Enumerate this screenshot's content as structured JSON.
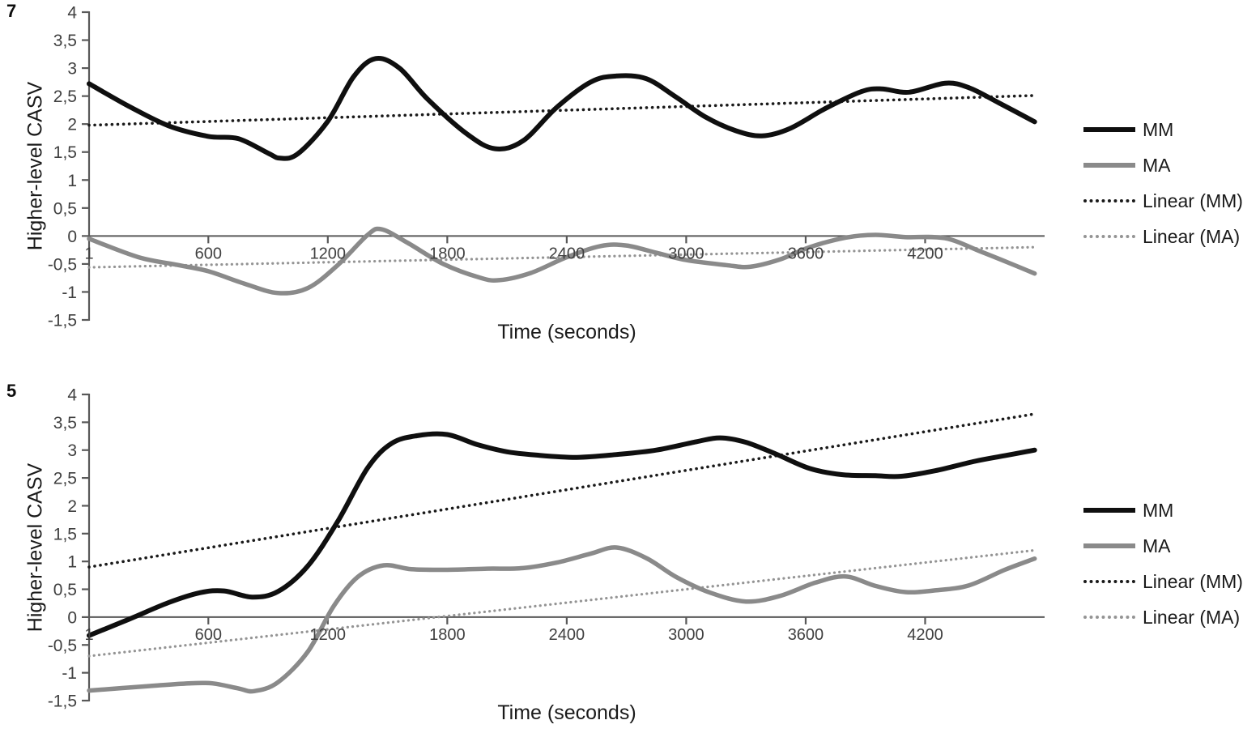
{
  "figure": {
    "background": "#ffffff"
  },
  "colors": {
    "mm": "#0f0f0f",
    "ma": "#8a8a8a",
    "linear_mm": "#1a1a1a",
    "linear_ma": "#949494",
    "axis": "#595959",
    "tick_text": "#404040",
    "title_text": "#1a1a1a"
  },
  "chart_data": [
    {
      "type": "line",
      "panel_label": "7",
      "xlabel": "Time (seconds)",
      "ylabel": "Higher-level CASV",
      "x_range": [
        1,
        4800
      ],
      "y_range": [
        -1.5,
        4
      ],
      "grid": false,
      "legend_position": "right",
      "x_ticks": [
        {
          "v": 1,
          "label": "1"
        },
        {
          "v": 600,
          "label": "600"
        },
        {
          "v": 1200,
          "label": "1200"
        },
        {
          "v": 1800,
          "label": "1800"
        },
        {
          "v": 2400,
          "label": "2400"
        },
        {
          "v": 3000,
          "label": "3000"
        },
        {
          "v": 3600,
          "label": "3600"
        },
        {
          "v": 4200,
          "label": "4200"
        }
      ],
      "y_ticks": [
        {
          "v": 4,
          "label": "4"
        },
        {
          "v": 3.5,
          "label": "3,5"
        },
        {
          "v": 3,
          "label": "3"
        },
        {
          "v": 2.5,
          "label": "2,5"
        },
        {
          "v": 2,
          "label": "2"
        },
        {
          "v": 1.5,
          "label": "1,5"
        },
        {
          "v": 1,
          "label": "1"
        },
        {
          "v": 0.5,
          "label": "0,5"
        },
        {
          "v": 0,
          "label": "0"
        },
        {
          "v": -0.5,
          "label": "-0,5"
        },
        {
          "v": -1,
          "label": "-1"
        },
        {
          "v": -1.5,
          "label": "-1,5"
        }
      ],
      "series": [
        {
          "name": "Linear (MM)",
          "style": "dotted",
          "color": "#1a1a1a",
          "stroke_width": 3.6,
          "points": [
            [
              1,
              1.98
            ],
            [
              4750,
              2.51
            ]
          ]
        },
        {
          "name": "Linear (MA)",
          "style": "dotted",
          "color": "#949494",
          "stroke_width": 3.2,
          "points": [
            [
              1,
              -0.56
            ],
            [
              4750,
              -0.2
            ]
          ]
        },
        {
          "name": "MA",
          "style": "solid",
          "color": "#8a8a8a",
          "stroke_width": 5.5,
          "points": [
            [
              1,
              -0.05
            ],
            [
              250,
              -0.38
            ],
            [
              450,
              -0.52
            ],
            [
              600,
              -0.63
            ],
            [
              780,
              -0.85
            ],
            [
              950,
              -1.02
            ],
            [
              1100,
              -0.93
            ],
            [
              1250,
              -0.52
            ],
            [
              1400,
              0.02
            ],
            [
              1470,
              0.12
            ],
            [
              1600,
              -0.12
            ],
            [
              1780,
              -0.5
            ],
            [
              1960,
              -0.74
            ],
            [
              2060,
              -0.79
            ],
            [
              2220,
              -0.66
            ],
            [
              2400,
              -0.38
            ],
            [
              2570,
              -0.18
            ],
            [
              2700,
              -0.17
            ],
            [
              2850,
              -0.3
            ],
            [
              3000,
              -0.43
            ],
            [
              3200,
              -0.52
            ],
            [
              3320,
              -0.55
            ],
            [
              3470,
              -0.42
            ],
            [
              3620,
              -0.2
            ],
            [
              3800,
              -0.03
            ],
            [
              3950,
              0.02
            ],
            [
              4100,
              -0.02
            ],
            [
              4300,
              -0.04
            ],
            [
              4480,
              -0.28
            ],
            [
              4620,
              -0.48
            ],
            [
              4750,
              -0.67
            ]
          ]
        },
        {
          "name": "MM",
          "style": "solid",
          "color": "#0f0f0f",
          "stroke_width": 6,
          "points": [
            [
              1,
              2.72
            ],
            [
              200,
              2.32
            ],
            [
              400,
              1.97
            ],
            [
              600,
              1.78
            ],
            [
              750,
              1.74
            ],
            [
              900,
              1.48
            ],
            [
              960,
              1.39
            ],
            [
              1050,
              1.47
            ],
            [
              1200,
              2.05
            ],
            [
              1330,
              2.85
            ],
            [
              1440,
              3.17
            ],
            [
              1560,
              3.0
            ],
            [
              1700,
              2.45
            ],
            [
              1900,
              1.82
            ],
            [
              2040,
              1.56
            ],
            [
              2180,
              1.7
            ],
            [
              2350,
              2.3
            ],
            [
              2520,
              2.75
            ],
            [
              2650,
              2.86
            ],
            [
              2800,
              2.81
            ],
            [
              2950,
              2.48
            ],
            [
              3100,
              2.12
            ],
            [
              3250,
              1.88
            ],
            [
              3380,
              1.79
            ],
            [
              3520,
              1.92
            ],
            [
              3700,
              2.28
            ],
            [
              3880,
              2.58
            ],
            [
              3980,
              2.63
            ],
            [
              4120,
              2.57
            ],
            [
              4300,
              2.73
            ],
            [
              4420,
              2.65
            ],
            [
              4570,
              2.38
            ],
            [
              4750,
              2.04
            ]
          ]
        }
      ],
      "legend": [
        "MM",
        "MA",
        "Linear (MM)",
        "Linear (MA)"
      ]
    },
    {
      "type": "line",
      "panel_label": "5",
      "xlabel": "Time (seconds)",
      "ylabel": "Higher-level CASV",
      "x_range": [
        1,
        4800
      ],
      "y_range": [
        -1.5,
        4
      ],
      "grid": false,
      "legend_position": "right",
      "x_ticks": [
        {
          "v": 1,
          "label": "1"
        },
        {
          "v": 600,
          "label": "600"
        },
        {
          "v": 1200,
          "label": "1200"
        },
        {
          "v": 1800,
          "label": "1800"
        },
        {
          "v": 2400,
          "label": "2400"
        },
        {
          "v": 3000,
          "label": "3000"
        },
        {
          "v": 3600,
          "label": "3600"
        },
        {
          "v": 4200,
          "label": "4200"
        }
      ],
      "y_ticks": [
        {
          "v": 4,
          "label": "4"
        },
        {
          "v": 3.5,
          "label": "3,5"
        },
        {
          "v": 3,
          "label": "3"
        },
        {
          "v": 2.5,
          "label": "2,5"
        },
        {
          "v": 2,
          "label": "2"
        },
        {
          "v": 1.5,
          "label": "1,5"
        },
        {
          "v": 1,
          "label": "1"
        },
        {
          "v": 0.5,
          "label": "0,5"
        },
        {
          "v": 0,
          "label": "0"
        },
        {
          "v": -0.5,
          "label": "-0,5"
        },
        {
          "v": -1,
          "label": "-1"
        },
        {
          "v": -1.5,
          "label": "-1,5"
        }
      ],
      "series": [
        {
          "name": "Linear (MM)",
          "style": "dotted",
          "color": "#1a1a1a",
          "stroke_width": 3.6,
          "points": [
            [
              1,
              0.9
            ],
            [
              4750,
              3.65
            ]
          ]
        },
        {
          "name": "Linear (MA)",
          "style": "dotted",
          "color": "#949494",
          "stroke_width": 3.2,
          "points": [
            [
              1,
              -0.7
            ],
            [
              4750,
              1.2
            ]
          ]
        },
        {
          "name": "MA",
          "style": "solid",
          "color": "#8a8a8a",
          "stroke_width": 5.5,
          "points": [
            [
              1,
              -1.32
            ],
            [
              300,
              -1.24
            ],
            [
              500,
              -1.19
            ],
            [
              620,
              -1.19
            ],
            [
              750,
              -1.28
            ],
            [
              830,
              -1.33
            ],
            [
              950,
              -1.17
            ],
            [
              1100,
              -0.62
            ],
            [
              1230,
              0.2
            ],
            [
              1350,
              0.72
            ],
            [
              1480,
              0.93
            ],
            [
              1620,
              0.86
            ],
            [
              1800,
              0.85
            ],
            [
              2000,
              0.87
            ],
            [
              2180,
              0.88
            ],
            [
              2350,
              0.98
            ],
            [
              2520,
              1.14
            ],
            [
              2650,
              1.25
            ],
            [
              2800,
              1.06
            ],
            [
              2950,
              0.72
            ],
            [
              3120,
              0.44
            ],
            [
              3300,
              0.28
            ],
            [
              3470,
              0.38
            ],
            [
              3650,
              0.62
            ],
            [
              3800,
              0.73
            ],
            [
              3950,
              0.56
            ],
            [
              4100,
              0.45
            ],
            [
              4250,
              0.48
            ],
            [
              4420,
              0.57
            ],
            [
              4600,
              0.85
            ],
            [
              4750,
              1.05
            ]
          ]
        },
        {
          "name": "MM",
          "style": "solid",
          "color": "#0f0f0f",
          "stroke_width": 6,
          "points": [
            [
              1,
              -0.33
            ],
            [
              200,
              -0.04
            ],
            [
              400,
              0.26
            ],
            [
              560,
              0.44
            ],
            [
              680,
              0.47
            ],
            [
              820,
              0.36
            ],
            [
              950,
              0.46
            ],
            [
              1100,
              0.92
            ],
            [
              1250,
              1.72
            ],
            [
              1400,
              2.68
            ],
            [
              1520,
              3.12
            ],
            [
              1650,
              3.26
            ],
            [
              1800,
              3.28
            ],
            [
              1950,
              3.1
            ],
            [
              2100,
              2.97
            ],
            [
              2250,
              2.91
            ],
            [
              2450,
              2.87
            ],
            [
              2650,
              2.92
            ],
            [
              2850,
              3.0
            ],
            [
              3050,
              3.15
            ],
            [
              3170,
              3.22
            ],
            [
              3300,
              3.14
            ],
            [
              3450,
              2.93
            ],
            [
              3620,
              2.67
            ],
            [
              3780,
              2.56
            ],
            [
              3950,
              2.54
            ],
            [
              4080,
              2.53
            ],
            [
              4250,
              2.63
            ],
            [
              4450,
              2.8
            ],
            [
              4600,
              2.9
            ],
            [
              4750,
              3.0
            ]
          ]
        }
      ],
      "legend": [
        "MM",
        "MA",
        "Linear (MM)",
        "Linear (MA)"
      ]
    }
  ]
}
